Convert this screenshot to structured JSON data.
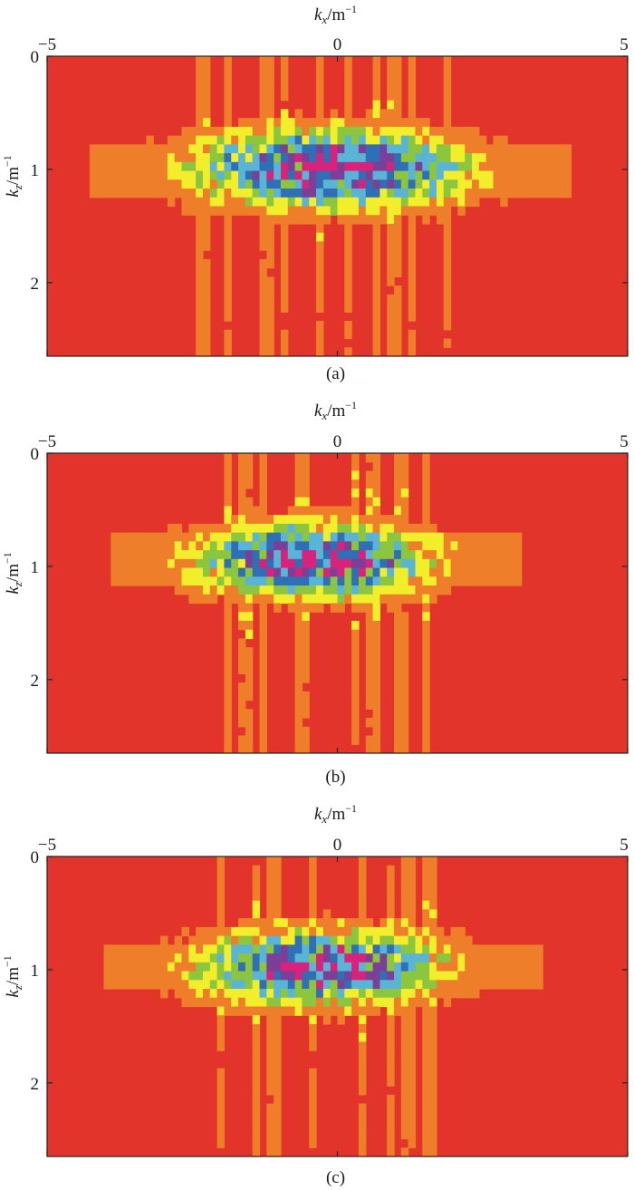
{
  "colors": {
    "background_red": "#e3342b",
    "orange": "#ef7e2b",
    "yellow": "#f2ee2c",
    "green": "#8cc63f",
    "cyan": "#5ab4d6",
    "blue": "#2f6fb5",
    "purple": "#7b3f98",
    "magenta": "#d9227c"
  },
  "chart_data": [
    {
      "type": "heatmap",
      "xlabel": "k_x/m^-1",
      "ylabel": "k_z/m^-1",
      "x_ticks": [
        "−5",
        "0",
        "5"
      ],
      "y_ticks": [
        "0",
        "1",
        "2"
      ],
      "xlim": [
        -5,
        5
      ],
      "ylim": [
        0,
        2.65
      ],
      "y_reversed": true,
      "x_axis_position": "top",
      "caption": "(a)",
      "blob": {
        "center_kx": -0.1,
        "center_kz": 1.0,
        "half_width_kx": 3.1,
        "half_height_kz": 0.45,
        "peak_level": 0.95
      },
      "streaks_kx": [
        -2.3,
        -1.9,
        -1.2,
        -0.9,
        -0.3,
        0.2,
        0.7,
        1.0,
        1.3,
        1.9
      ],
      "colormap": [
        "#e3342b",
        "#ef7e2b",
        "#f2ee2c",
        "#8cc63f",
        "#5ab4d6",
        "#2f6fb5",
        "#7b3f98",
        "#d9227c"
      ]
    },
    {
      "type": "heatmap",
      "xlabel": "k_x/m^-1",
      "ylabel": "k_z/m^-1",
      "x_ticks": [
        "−5",
        "0",
        "5"
      ],
      "y_ticks": [
        "0",
        "1",
        "2"
      ],
      "xlim": [
        -5,
        5
      ],
      "ylim": [
        0,
        2.65
      ],
      "y_reversed": true,
      "x_axis_position": "top",
      "caption": "(b)",
      "blob": {
        "center_kx": -0.4,
        "center_kz": 0.95,
        "half_width_kx": 2.6,
        "half_height_kz": 0.42,
        "peak_level": 0.95
      },
      "streaks_kx": [
        -1.9,
        -1.6,
        -1.3,
        -0.6,
        0.3,
        0.6,
        1.1,
        1.5
      ],
      "colormap": [
        "#e3342b",
        "#ef7e2b",
        "#f2ee2c",
        "#8cc63f",
        "#5ab4d6",
        "#2f6fb5",
        "#7b3f98",
        "#d9227c"
      ]
    },
    {
      "type": "heatmap",
      "xlabel": "k_x/m^-1",
      "ylabel": "k_z/m^-1",
      "x_ticks": [
        "−5",
        "0",
        "5"
      ],
      "y_ticks": [
        "0",
        "1",
        "2"
      ],
      "xlim": [
        -5,
        5
      ],
      "ylim": [
        0,
        2.65
      ],
      "y_reversed": true,
      "x_axis_position": "top",
      "caption": "(c)",
      "blob": {
        "center_kx": -0.3,
        "center_kz": 0.98,
        "half_width_kx": 2.8,
        "half_height_kz": 0.42,
        "peak_level": 0.92
      },
      "streaks_kx": [
        -2.0,
        -1.4,
        -1.1,
        -0.4,
        0.4,
        0.9,
        1.2,
        1.6
      ],
      "colormap": [
        "#e3342b",
        "#ef7e2b",
        "#f2ee2c",
        "#8cc63f",
        "#5ab4d6",
        "#2f6fb5",
        "#7b3f98",
        "#d9227c"
      ]
    }
  ]
}
